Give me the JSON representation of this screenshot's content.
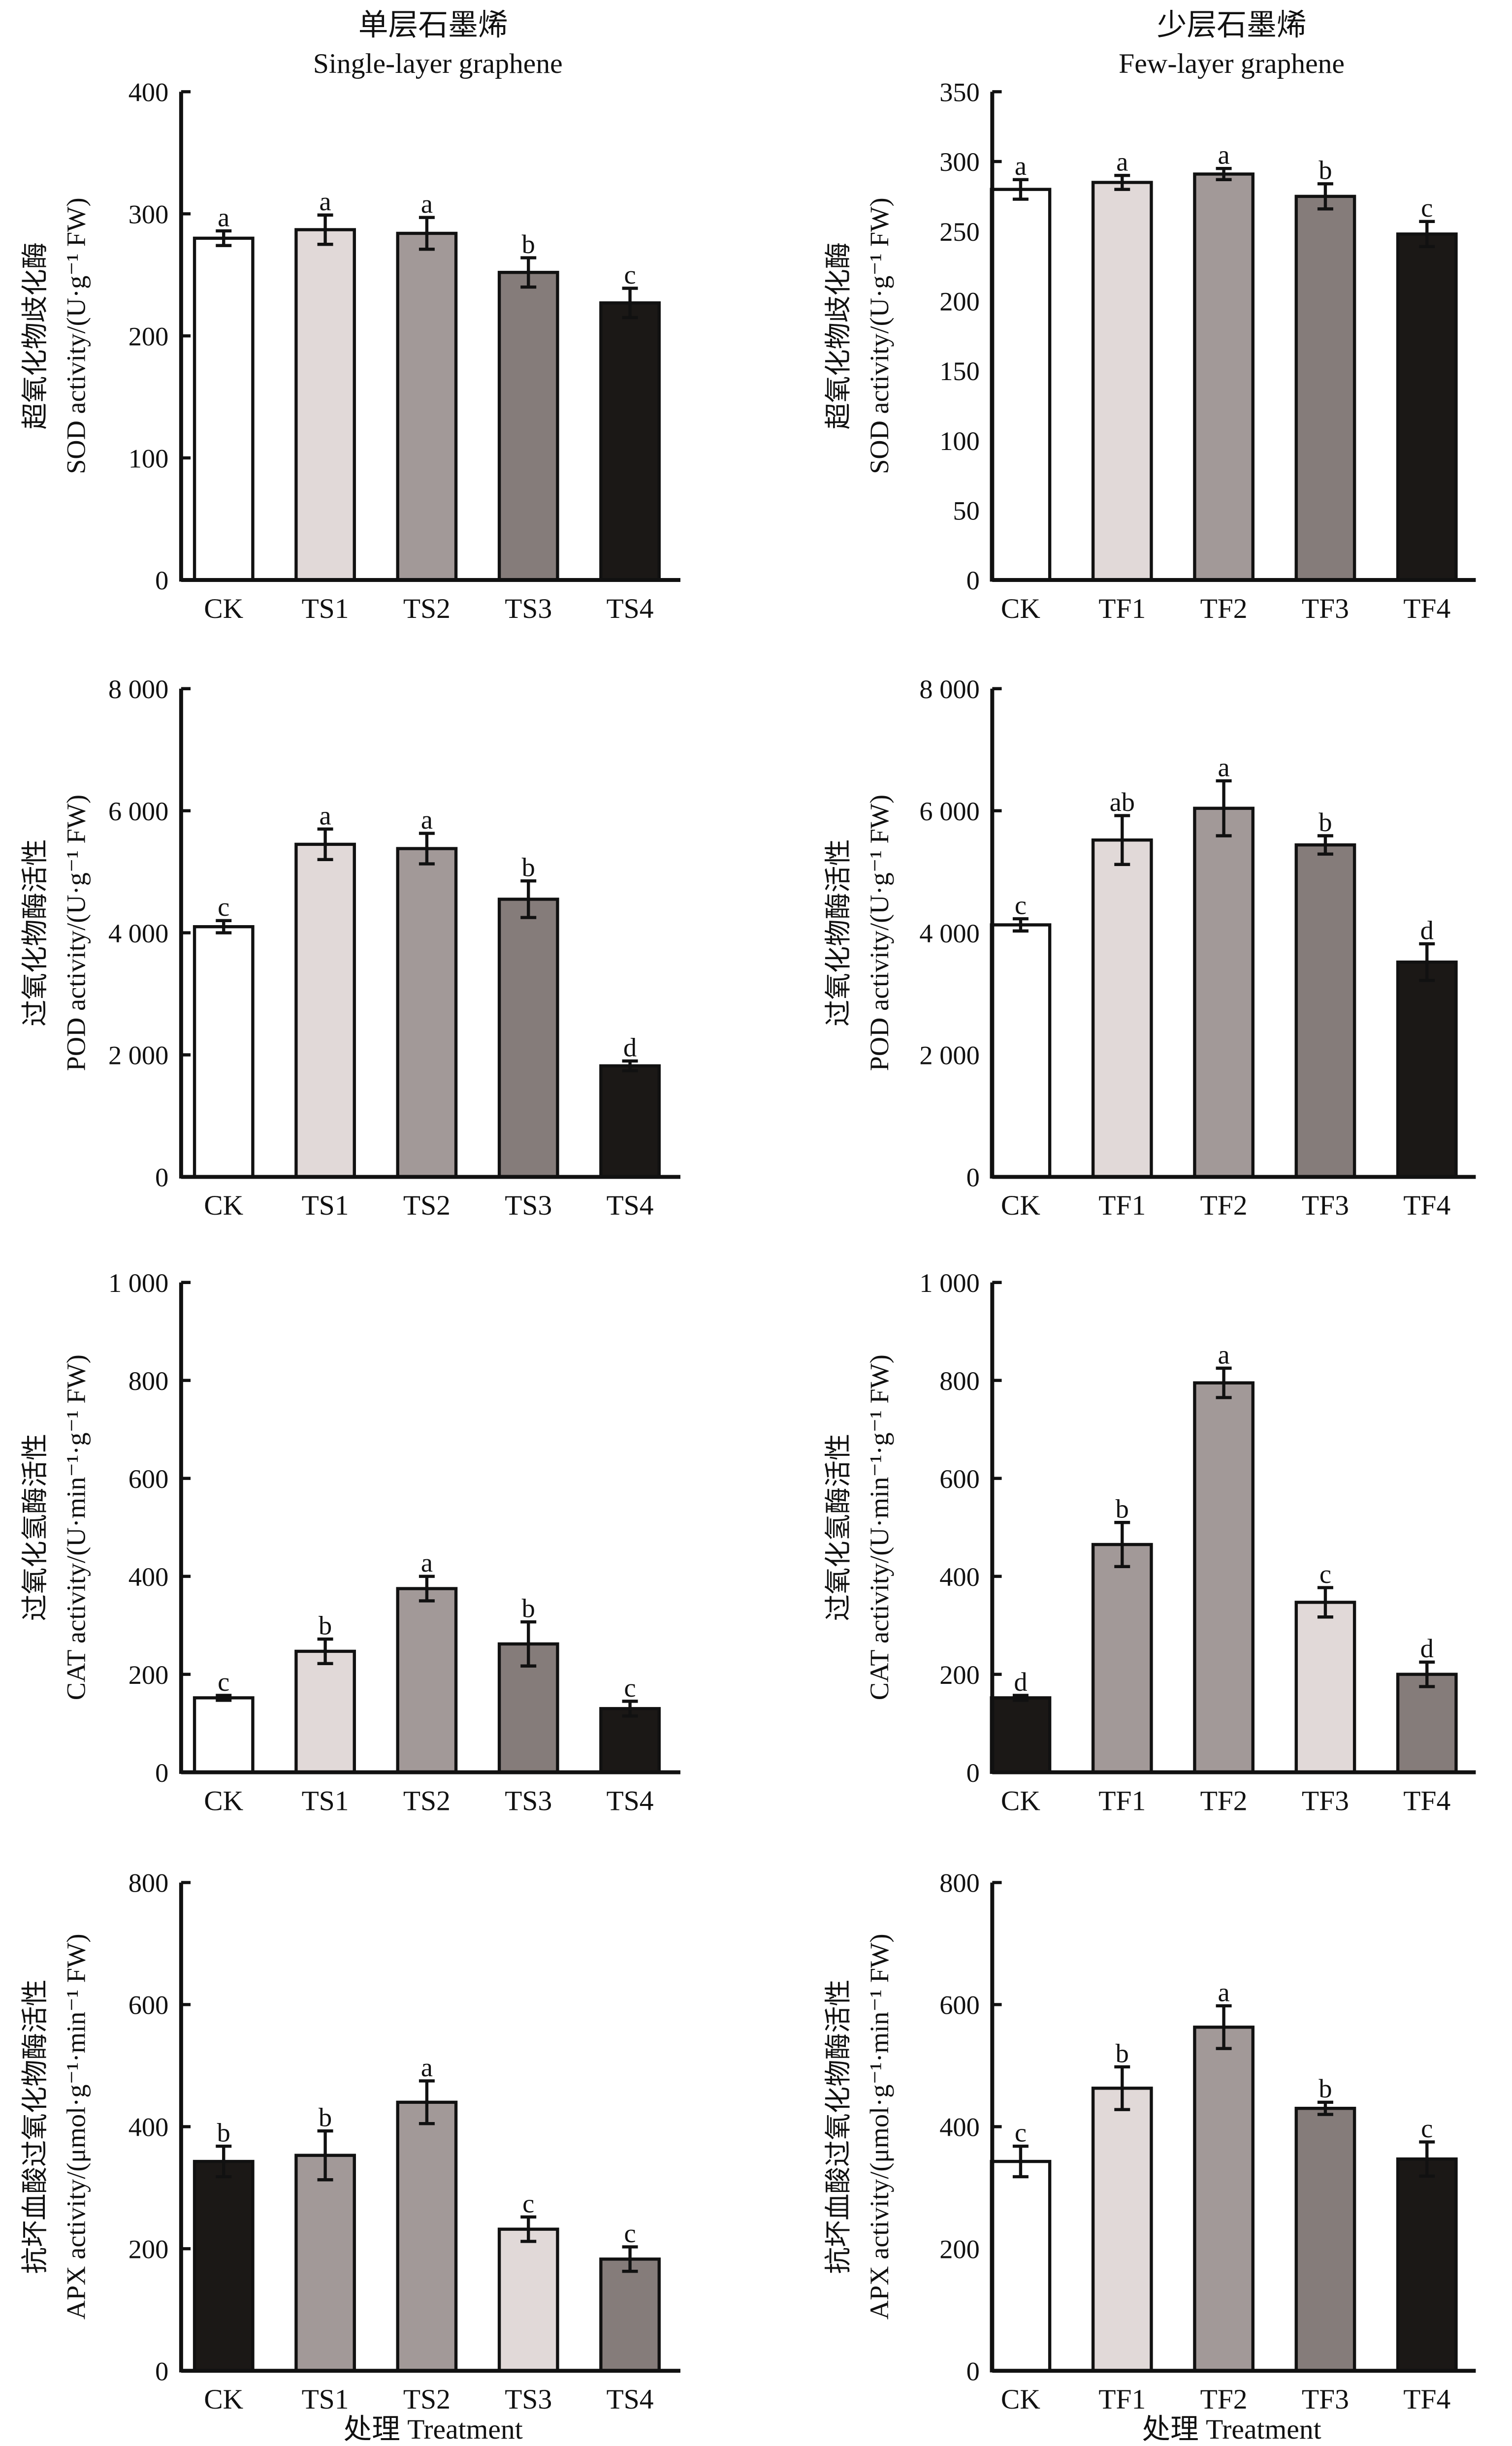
{
  "columns": [
    {
      "title_cn": "单层石墨烯",
      "title_en": "Single-layer graphene",
      "xlabel": "处理 Treatment"
    },
    {
      "title_cn": "少层石墨烯",
      "title_en": "Few-layer graphene",
      "xlabel": "处理 Treatment"
    }
  ],
  "colors": {
    "white": "#ffffff",
    "light": "#e1d9d8",
    "mid": "#a29998",
    "dark": "#857c7a",
    "black": "#1b1816"
  },
  "chart_data": [
    {
      "type": "bar",
      "ylabel_cn": "超氧化物歧化酶",
      "ylabel": "SOD activity/(U·g⁻¹ FW)",
      "ylim": [
        0,
        400
      ],
      "yticks": [
        "0",
        "100",
        "200",
        "300",
        "400"
      ],
      "ytick_values": [
        0,
        100,
        200,
        300,
        400
      ],
      "categories": [
        "CK",
        "TS1",
        "TS2",
        "TS3",
        "TS4"
      ],
      "values": [
        280,
        287,
        284,
        252,
        227
      ],
      "errors": [
        6,
        12,
        13,
        12,
        12
      ],
      "letters": [
        "a",
        "a",
        "a",
        "b",
        "c"
      ],
      "fills": [
        "white",
        "light",
        "mid",
        "dark",
        "black"
      ]
    },
    {
      "type": "bar",
      "ylabel_cn": "超氧化物歧化酶",
      "ylabel": "SOD activity/(U·g⁻¹ FW)",
      "ylim": [
        0,
        350
      ],
      "yticks": [
        "0",
        "50",
        "100",
        "150",
        "200",
        "250",
        "300",
        "350"
      ],
      "ytick_values": [
        0,
        50,
        100,
        150,
        200,
        250,
        300,
        350
      ],
      "categories": [
        "CK",
        "TF1",
        "TF2",
        "TF3",
        "TF4"
      ],
      "values": [
        280,
        285,
        291,
        275,
        248
      ],
      "errors": [
        7,
        5,
        4,
        9,
        9
      ],
      "letters": [
        "a",
        "a",
        "a",
        "b",
        "c"
      ],
      "fills": [
        "white",
        "light",
        "mid",
        "dark",
        "black"
      ]
    },
    {
      "type": "bar",
      "ylabel_cn": "过氧化物酶活性",
      "ylabel": "POD activity/(U·g⁻¹ FW)",
      "ylim": [
        0,
        8000
      ],
      "yticks": [
        "0",
        "2 000",
        "4 000",
        "6 000",
        "8 000"
      ],
      "ytick_values": [
        0,
        2000,
        4000,
        6000,
        8000
      ],
      "categories": [
        "CK",
        "TS1",
        "TS2",
        "TS3",
        "TS4"
      ],
      "values": [
        4100,
        5450,
        5380,
        4550,
        1820
      ],
      "errors": [
        100,
        250,
        250,
        300,
        80
      ],
      "letters": [
        "c",
        "a",
        "a",
        "b",
        "d"
      ],
      "fills": [
        "white",
        "light",
        "mid",
        "dark",
        "black"
      ]
    },
    {
      "type": "bar",
      "ylabel_cn": "过氧化物酶活性",
      "ylabel": "POD activity/(U·g⁻¹ FW)",
      "ylim": [
        0,
        8000
      ],
      "yticks": [
        "0",
        "2 000",
        "4 000",
        "6 000",
        "8 000"
      ],
      "ytick_values": [
        0,
        2000,
        4000,
        6000,
        8000
      ],
      "categories": [
        "CK",
        "TF1",
        "TF2",
        "TF3",
        "TF4"
      ],
      "values": [
        4130,
        5520,
        6040,
        5440,
        3520
      ],
      "errors": [
        100,
        400,
        450,
        150,
        300
      ],
      "letters": [
        "c",
        "ab",
        "a",
        "b",
        "d"
      ],
      "fills": [
        "white",
        "light",
        "mid",
        "dark",
        "black"
      ]
    },
    {
      "type": "bar",
      "ylabel_cn": "过氧化氢酶活性",
      "ylabel": "CAT activity/(U·min⁻¹·g⁻¹ FW)",
      "ylim": [
        0,
        1000
      ],
      "yticks": [
        "0",
        "200",
        "400",
        "600",
        "800",
        "1 000"
      ],
      "ytick_values": [
        0,
        200,
        400,
        600,
        800,
        1000
      ],
      "categories": [
        "CK",
        "TS1",
        "TS2",
        "TS3",
        "TS4"
      ],
      "values": [
        152,
        247,
        375,
        262,
        130
      ],
      "errors": [
        5,
        25,
        25,
        45,
        15
      ],
      "letters": [
        "c",
        "b",
        "a",
        "b",
        "c"
      ],
      "fills": [
        "white",
        "light",
        "mid",
        "dark",
        "black"
      ]
    },
    {
      "type": "bar",
      "ylabel_cn": "过氧化氢酶活性",
      "ylabel": "CAT activity/(U·min⁻¹·g⁻¹ FW)",
      "ylim": [
        0,
        1000
      ],
      "yticks": [
        "0",
        "200",
        "400",
        "600",
        "800",
        "1 000"
      ],
      "ytick_values": [
        0,
        200,
        400,
        600,
        800,
        1000
      ],
      "categories": [
        "CK",
        "TF1",
        "TF2",
        "TF3",
        "TF4"
      ],
      "values": [
        152,
        465,
        795,
        347,
        200
      ],
      "errors": [
        5,
        45,
        30,
        30,
        25
      ],
      "letters": [
        "d",
        "b",
        "a",
        "c",
        "d"
      ],
      "fills": [
        "black",
        "mid",
        "mid",
        "light",
        "dark"
      ]
    },
    {
      "type": "bar",
      "ylabel_cn": "抗坏血酸过氧化物酶活性",
      "ylabel": "APX activity/(μmol·g⁻¹·min⁻¹ FW)",
      "ylim": [
        0,
        800
      ],
      "yticks": [
        "0",
        "200",
        "400",
        "600",
        "800"
      ],
      "ytick_values": [
        0,
        200,
        400,
        600,
        800
      ],
      "categories": [
        "CK",
        "TS1",
        "TS2",
        "TS3",
        "TS4"
      ],
      "values": [
        343,
        353,
        440,
        232,
        183
      ],
      "errors": [
        25,
        40,
        35,
        20,
        20
      ],
      "letters": [
        "b",
        "b",
        "a",
        "c",
        "c"
      ],
      "fills": [
        "black",
        "mid",
        "mid",
        "light",
        "dark"
      ]
    },
    {
      "type": "bar",
      "ylabel_cn": "抗坏血酸过氧化物酶活性",
      "ylabel": "APX activity/(μmol·g⁻¹·min⁻¹ FW)",
      "ylim": [
        0,
        800
      ],
      "yticks": [
        "0",
        "200",
        "400",
        "600",
        "800"
      ],
      "ytick_values": [
        0,
        200,
        400,
        600,
        800
      ],
      "categories": [
        "CK",
        "TF1",
        "TF2",
        "TF3",
        "TF4"
      ],
      "values": [
        343,
        463,
        563,
        430,
        347
      ],
      "errors": [
        25,
        35,
        35,
        10,
        28
      ],
      "letters": [
        "c",
        "b",
        "a",
        "b",
        "c"
      ],
      "fills": [
        "white",
        "light",
        "mid",
        "dark",
        "black"
      ]
    }
  ]
}
